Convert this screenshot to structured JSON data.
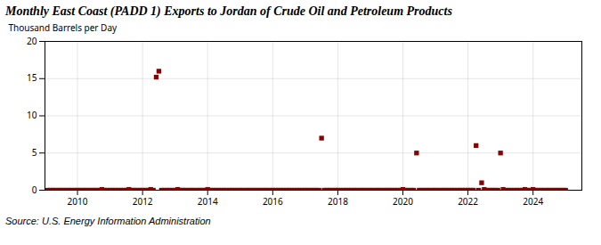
{
  "chart_data": {
    "type": "scatter",
    "title": "Monthly East Coast (PADD 1) Exports to Jordan of Crude Oil and Petroleum Products",
    "ylabel": "Thousand Barrels per Day",
    "source": "Source: U.S. Energy Information Administration",
    "color": "#8b0000",
    "marker": "square",
    "grid": true,
    "xlim": [
      2009.0,
      2025.5
    ],
    "ylim": [
      0,
      20
    ],
    "xticks": [
      2010,
      2012,
      2014,
      2016,
      2018,
      2020,
      2022,
      2024
    ],
    "yticks": [
      0,
      5,
      10,
      15,
      20
    ],
    "x": [
      2009.08,
      2009.17,
      2009.25,
      2009.33,
      2009.42,
      2009.5,
      2009.58,
      2009.67,
      2009.75,
      2009.83,
      2009.92,
      2010.0,
      2010.08,
      2010.17,
      2010.25,
      2010.33,
      2010.42,
      2010.5,
      2010.58,
      2010.67,
      2010.75,
      2010.83,
      2010.92,
      2011.0,
      2011.08,
      2011.17,
      2011.25,
      2011.33,
      2011.42,
      2011.5,
      2011.58,
      2011.67,
      2011.75,
      2011.83,
      2011.92,
      2012.0,
      2012.08,
      2012.17,
      2012.25,
      2012.33,
      2012.42,
      2012.5,
      2012.58,
      2012.67,
      2012.75,
      2012.83,
      2012.92,
      2013.0,
      2013.08,
      2013.17,
      2013.25,
      2013.33,
      2013.42,
      2013.5,
      2013.58,
      2013.67,
      2013.75,
      2013.83,
      2013.92,
      2014.0,
      2014.08,
      2014.17,
      2014.25,
      2014.33,
      2014.42,
      2014.5,
      2014.58,
      2014.67,
      2014.75,
      2014.83,
      2014.92,
      2015.0,
      2015.08,
      2015.17,
      2015.25,
      2015.33,
      2015.42,
      2015.5,
      2015.58,
      2015.67,
      2015.75,
      2015.83,
      2015.92,
      2016.0,
      2016.08,
      2016.17,
      2016.25,
      2016.33,
      2016.42,
      2016.5,
      2016.58,
      2016.67,
      2016.75,
      2016.83,
      2016.92,
      2017.0,
      2017.08,
      2017.17,
      2017.25,
      2017.33,
      2017.42,
      2017.5,
      2017.58,
      2017.67,
      2017.75,
      2017.83,
      2017.92,
      2018.0,
      2018.08,
      2018.17,
      2018.25,
      2018.33,
      2018.42,
      2018.5,
      2018.58,
      2018.67,
      2018.75,
      2018.83,
      2018.92,
      2019.0,
      2019.08,
      2019.17,
      2019.25,
      2019.33,
      2019.42,
      2019.5,
      2019.58,
      2019.67,
      2019.75,
      2019.83,
      2019.92,
      2020.0,
      2020.08,
      2020.17,
      2020.25,
      2020.33,
      2020.42,
      2020.5,
      2020.58,
      2020.67,
      2020.75,
      2020.83,
      2020.92,
      2021.0,
      2021.08,
      2021.17,
      2021.25,
      2021.33,
      2021.42,
      2021.5,
      2021.58,
      2021.67,
      2021.75,
      2021.83,
      2021.92,
      2022.0,
      2022.08,
      2022.17,
      2022.25,
      2022.33,
      2022.42,
      2022.5,
      2022.58,
      2022.67,
      2022.75,
      2022.83,
      2022.92,
      2023.0,
      2023.08,
      2023.17,
      2023.25,
      2023.33,
      2023.42,
      2023.5,
      2023.58,
      2023.67,
      2023.75,
      2023.83,
      2023.92,
      2024.0,
      2024.08,
      2024.17,
      2024.25,
      2024.33,
      2024.42,
      2024.5,
      2024.58,
      2024.67,
      2024.75,
      2024.83,
      2024.92,
      2025.0
    ],
    "values": [
      0.0,
      0.0,
      0.0,
      0.0,
      0.0,
      0.0,
      0.0,
      0.0,
      0.0,
      0.0,
      0.0,
      0.0,
      0.0,
      0.0,
      0.0,
      0.0,
      0.0,
      0.0,
      0.0,
      0.0,
      0.1,
      0.0,
      0.0,
      0.0,
      0.0,
      0.0,
      0.0,
      0.0,
      0.0,
      0.0,
      0.1,
      0.0,
      0.0,
      0.0,
      0.0,
      0.0,
      0.0,
      0.0,
      0.1,
      0.0,
      15.2,
      16.0,
      0.0,
      0.0,
      0.0,
      0.0,
      0.0,
      0.0,
      0.1,
      0.0,
      0.0,
      0.0,
      0.0,
      0.0,
      0.0,
      0.0,
      0.0,
      0.0,
      0.0,
      0.1,
      0.0,
      0.0,
      0.0,
      0.0,
      0.0,
      0.0,
      0.0,
      0.0,
      0.0,
      0.0,
      0.0,
      0.0,
      0.0,
      0.0,
      0.0,
      0.0,
      0.0,
      0.0,
      0.0,
      0.0,
      0.0,
      0.0,
      0.0,
      0.0,
      0.0,
      0.0,
      0.0,
      0.0,
      0.0,
      0.0,
      0.0,
      0.0,
      0.0,
      0.0,
      0.0,
      0.0,
      0.0,
      0.0,
      0.0,
      0.0,
      0.0,
      7.0,
      0.0,
      0.0,
      0.0,
      0.0,
      0.0,
      0.0,
      0.0,
      0.0,
      0.0,
      0.0,
      0.0,
      0.0,
      0.0,
      0.0,
      0.0,
      0.0,
      0.0,
      0.0,
      0.0,
      0.0,
      0.0,
      0.0,
      0.0,
      0.0,
      0.0,
      0.0,
      0.0,
      0.0,
      0.0,
      0.1,
      0.0,
      0.0,
      0.0,
      0.0,
      5.0,
      0.0,
      0.0,
      0.0,
      0.0,
      0.0,
      0.0,
      0.0,
      0.0,
      0.0,
      0.0,
      0.0,
      0.0,
      0.0,
      0.0,
      0.0,
      0.0,
      0.0,
      0.0,
      0.0,
      0.0,
      0.0,
      6.0,
      0.0,
      1.0,
      0.1,
      0.0,
      0.0,
      0.0,
      0.0,
      0.0,
      5.0,
      0.1,
      0.0,
      0.0,
      0.0,
      0.0,
      0.0,
      0.0,
      0.0,
      0.1,
      0.0,
      0.0,
      0.1,
      0.0,
      0.0,
      0.0,
      0.0,
      0.0,
      0.0,
      0.0,
      0.0,
      0.0,
      0.0,
      0.0,
      0.0
    ]
  }
}
